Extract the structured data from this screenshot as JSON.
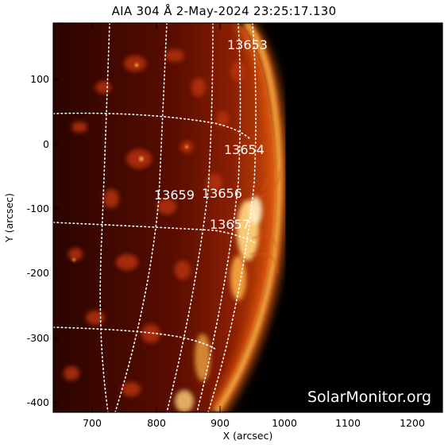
{
  "title": "AIA 304 Å  2-May-2024 23:25:17.130",
  "x_axis_label": "X (arcsec)",
  "y_axis_label": "Y (arcsec)",
  "x_ticks": [
    "700",
    "800",
    "900",
    "1000",
    "1100",
    "1200"
  ],
  "y_ticks": [
    "100",
    "0",
    "-100",
    "-200",
    "-300",
    "-400"
  ],
  "regions": [
    "13653",
    "13654",
    "13659",
    "13656",
    "13657"
  ],
  "watermark": "SolarMonitor.org",
  "colors": {
    "sky": "#000000",
    "disk_dark": "#3a0600",
    "disk_mid": "#a32a05",
    "limb_bright": "#ffd27a",
    "grid": "#ffffff"
  }
}
